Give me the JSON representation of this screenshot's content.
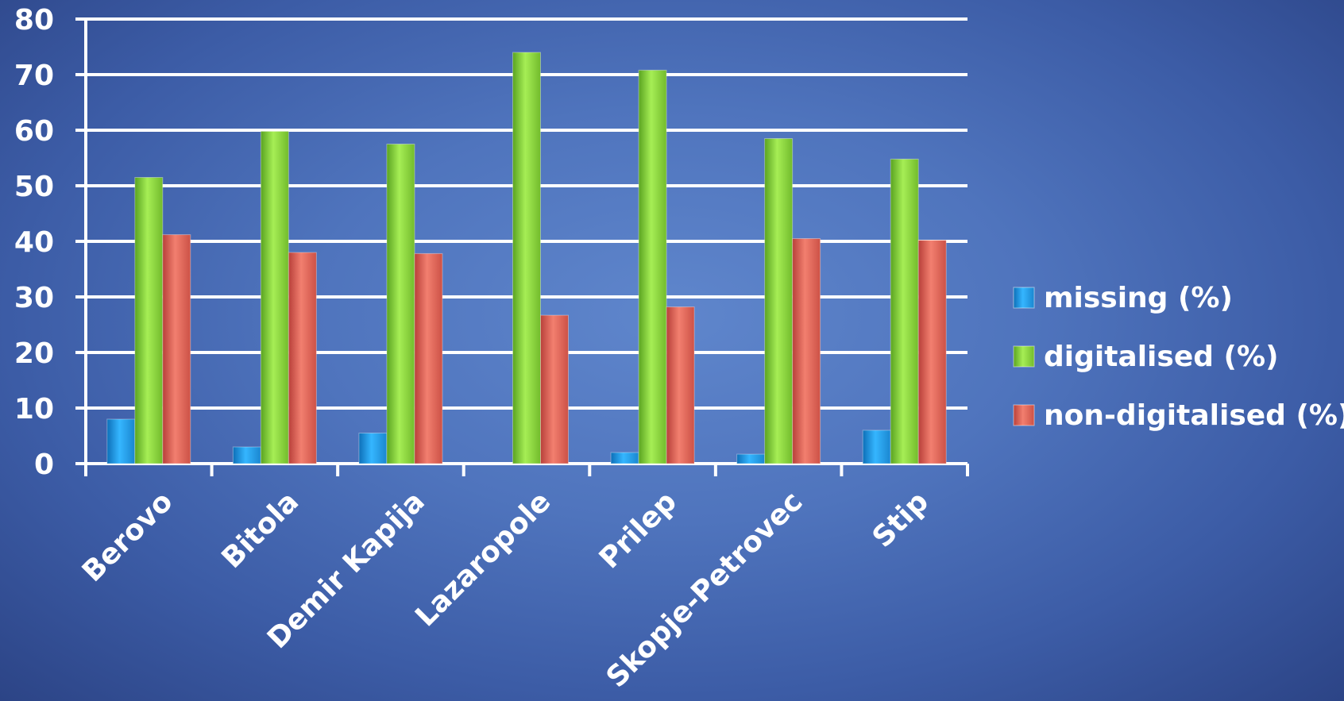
{
  "chart_data": {
    "type": "bar",
    "categories": [
      "Berovo",
      "Bitola",
      "Demir Kapija",
      "Lazaropole",
      "Prilep",
      "Skopje-Petrovec",
      "Stip"
    ],
    "series": [
      {
        "name": "missing (%)",
        "color": "#1e9be6",
        "values": [
          8,
          3,
          5.5,
          0,
          2,
          1.7,
          6
        ]
      },
      {
        "name": "digitalised (%)",
        "color": "#8cd63c",
        "values": [
          51.5,
          59.8,
          57.5,
          74,
          70.8,
          58.5,
          54.8
        ]
      },
      {
        "name": "non-digitalised (%)",
        "color": "#e06456",
        "values": [
          41.2,
          38,
          37.8,
          26.7,
          28.2,
          40.5,
          40.2
        ]
      }
    ],
    "yticks": [
      0,
      10,
      20,
      30,
      40,
      50,
      60,
      70,
      80
    ],
    "ylim": [
      0,
      80
    ],
    "grid": true,
    "legend": "right"
  }
}
